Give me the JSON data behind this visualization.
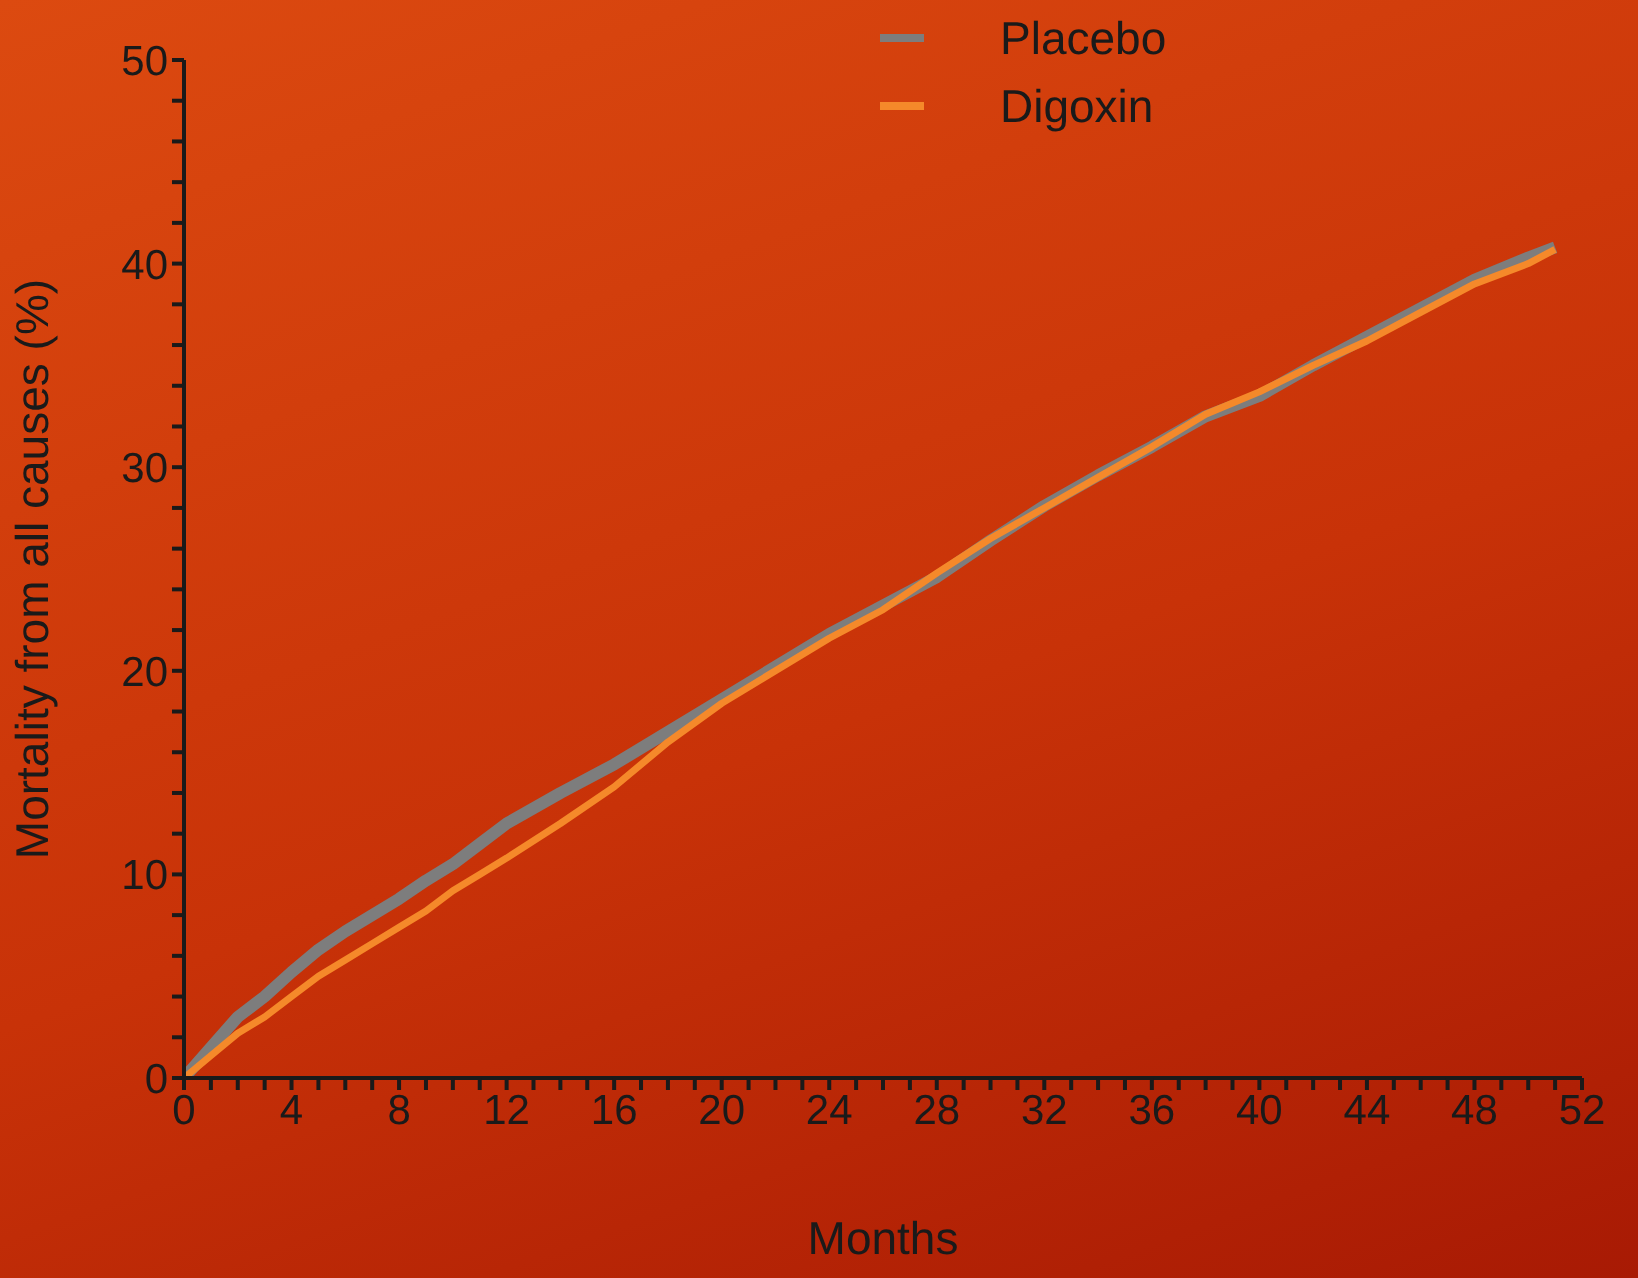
{
  "chart_data": {
    "type": "line",
    "xlabel": "Months",
    "ylabel": "Mortality from all causes (%)",
    "x": [
      0,
      1,
      2,
      3,
      4,
      5,
      6,
      7,
      8,
      9,
      10,
      11,
      12,
      14,
      16,
      18,
      20,
      22,
      24,
      26,
      28,
      30,
      32,
      34,
      36,
      38,
      40,
      42,
      44,
      46,
      48,
      50,
      51
    ],
    "series": [
      {
        "name": "Placebo",
        "color": "#7d7d7d",
        "values": [
          0,
          1.5,
          3,
          4,
          5.2,
          6.3,
          7.2,
          8,
          8.8,
          9.7,
          10.5,
          11.5,
          12.5,
          14,
          15.4,
          17,
          18.6,
          20.2,
          21.8,
          23.2,
          24.6,
          26.4,
          28.1,
          29.6,
          31,
          32.5,
          33.5,
          35,
          36.4,
          37.8,
          39.2,
          40.3,
          40.8
        ]
      },
      {
        "name": "Digoxin",
        "color": "#f5892a",
        "values": [
          0,
          1.1,
          2.2,
          3,
          4,
          5,
          5.8,
          6.6,
          7.4,
          8.2,
          9.2,
          10,
          10.8,
          12.5,
          14.3,
          16.5,
          18.4,
          20,
          21.6,
          23,
          24.8,
          26.5,
          28,
          29.5,
          31,
          32.6,
          33.7,
          35,
          36.2,
          37.6,
          39,
          40,
          40.7
        ]
      }
    ],
    "xlim": [
      0,
      52
    ],
    "xticks": [
      0,
      {
        "value": 1,
        "label": null
      },
      {
        "value": 2,
        "label": null
      },
      {
        "value": 3,
        "label": null
      },
      4,
      {
        "value": 5,
        "label": null
      },
      {
        "value": 6,
        "label": null
      },
      {
        "value": 7,
        "label": null
      },
      8,
      {
        "value": 9,
        "label": null
      },
      {
        "value": 10,
        "label": null
      },
      {
        "value": 11,
        "label": null
      },
      12,
      {
        "value": 13,
        "label": null
      },
      {
        "value": 14,
        "label": null
      },
      {
        "value": 15,
        "label": null
      },
      16,
      {
        "value": 17,
        "label": null
      },
      {
        "value": 18,
        "label": null
      },
      {
        "value": 19,
        "label": null
      },
      20,
      {
        "value": 21,
        "label": null
      },
      {
        "value": 22,
        "label": null
      },
      {
        "value": 23,
        "label": null
      },
      24,
      {
        "value": 25,
        "label": null
      },
      {
        "value": 26,
        "label": null
      },
      {
        "value": 27,
        "label": null
      },
      28,
      {
        "value": 29,
        "label": null
      },
      {
        "value": 30,
        "label": null
      },
      {
        "value": 31,
        "label": null
      },
      32,
      {
        "value": 33,
        "label": null
      },
      {
        "value": 34,
        "label": null
      },
      {
        "value": 35,
        "label": null
      },
      36,
      {
        "value": 37,
        "label": null
      },
      {
        "value": 38,
        "label": null
      },
      {
        "value": 39,
        "label": null
      },
      40,
      {
        "value": 41,
        "label": null
      },
      {
        "value": 42,
        "label": null
      },
      {
        "value": 43,
        "label": null
      },
      44,
      {
        "value": 45,
        "label": null
      },
      {
        "value": 46,
        "label": null
      },
      {
        "value": 47,
        "label": null
      },
      48,
      {
        "value": 49,
        "label": null
      },
      {
        "value": 50,
        "label": null
      },
      {
        "value": 51,
        "label": null
      },
      52
    ],
    "ylim": [
      0,
      50
    ],
    "yticks": [
      0,
      {
        "value": 2,
        "label": null
      },
      {
        "value": 4,
        "label": null
      },
      {
        "value": 6,
        "label": null
      },
      {
        "value": 8,
        "label": null
      },
      10,
      {
        "value": 12,
        "label": null
      },
      {
        "value": 14,
        "label": null
      },
      {
        "value": 16,
        "label": null
      },
      {
        "value": 18,
        "label": null
      },
      20,
      {
        "value": 22,
        "label": null
      },
      {
        "value": 24,
        "label": null
      },
      {
        "value": 26,
        "label": null
      },
      {
        "value": 28,
        "label": null
      },
      30,
      {
        "value": 32,
        "label": null
      },
      {
        "value": 34,
        "label": null
      },
      {
        "value": 36,
        "label": null
      },
      {
        "value": 38,
        "label": null
      },
      40,
      {
        "value": 42,
        "label": null
      },
      {
        "value": 44,
        "label": null
      },
      {
        "value": 46,
        "label": null
      },
      {
        "value": 48,
        "label": null
      },
      50
    ],
    "grid": false,
    "legend": "top",
    "marker": "none",
    "line_style": "solid"
  }
}
